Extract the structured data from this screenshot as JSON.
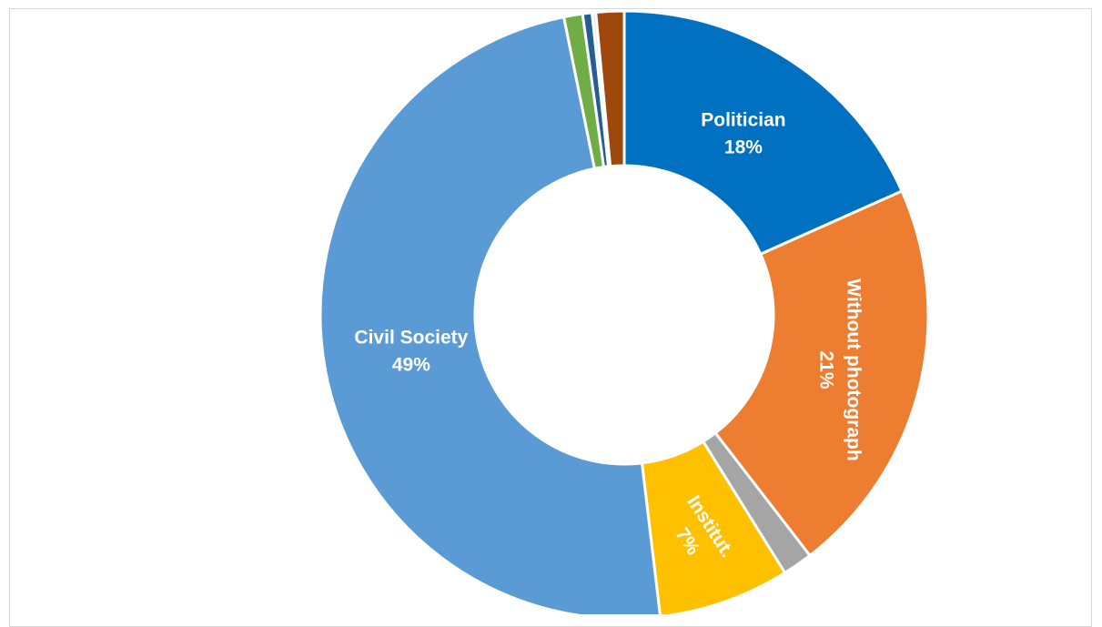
{
  "chart_data": {
    "type": "pie",
    "variant": "donut",
    "title": "",
    "slices": [
      {
        "label": "Politician",
        "value": 18.4,
        "percent_label": "18%",
        "color": "#0070c0",
        "show_label": true
      },
      {
        "label": "Without photograph",
        "value": 21.3,
        "percent_label": "21%",
        "color": "#ed7d31",
        "show_label": true
      },
      {
        "label": "",
        "value": 1.6,
        "percent_label": "",
        "color": "#a5a5a5",
        "show_label": false
      },
      {
        "label": "Institut.",
        "value": 7.0,
        "percent_label": "7%",
        "color": "#ffc000",
        "show_label": true
      },
      {
        "label": "Civil Society",
        "value": 48.9,
        "percent_label": "49%",
        "color": "#5b9bd5",
        "show_label": true
      },
      {
        "label": "",
        "value": 1.0,
        "percent_label": "",
        "color": "#70ad47",
        "show_label": false
      },
      {
        "label": "",
        "value": 0.5,
        "percent_label": "",
        "color": "#255e91",
        "show_label": false
      },
      {
        "label": "",
        "value": 0.2,
        "percent_label": "",
        "color": "#dee6f0",
        "show_label": false
      },
      {
        "label": "",
        "value": 1.5,
        "percent_label": "",
        "color": "#9e480e",
        "show_label": false
      }
    ],
    "legend": "none",
    "start_angle": "12 o'clock, clockwise"
  }
}
